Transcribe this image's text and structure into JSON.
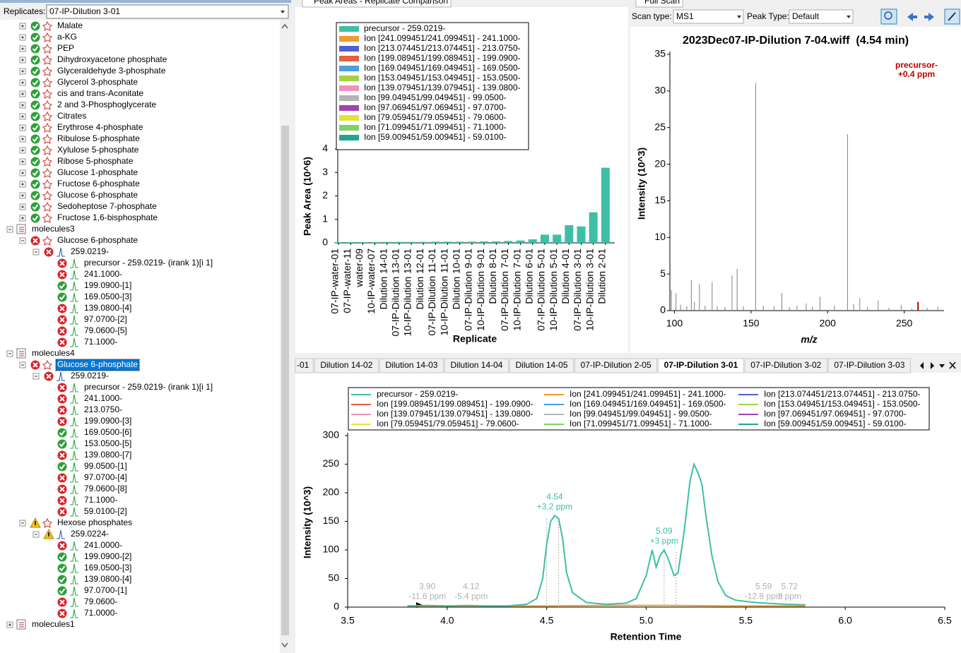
{
  "panels": {
    "replicates": {
      "label": "Replicates:",
      "value": "07-IP-Dilution 3-01"
    },
    "peak_areas_tab": "Peak Areas - Replicate Comparison",
    "full_scan_tab": "Full Scan",
    "scan_type_label": "Scan type:",
    "scan_type": "MS1",
    "peak_type_label": "Peak Type:",
    "peak_type": "Default",
    "chromatogram_tabs": [
      "-01",
      "Dilution 14-02",
      "Dilution 14-03",
      "Dilution 14-04",
      "Dilution 14-05",
      "07-IP-Dilution 2-05",
      "07-IP-Dilution 3-01",
      "07-IP-Dilution 3-02",
      "07-IP-Dilution 3-03"
    ],
    "active_tab": 6
  },
  "tree": [
    {
      "text": "Malate",
      "level": 1,
      "status": "ok",
      "expanded": false
    },
    {
      "text": "a-KG",
      "level": 1,
      "status": "ok",
      "expanded": false
    },
    {
      "text": "PEP",
      "level": 1,
      "status": "ok",
      "expanded": false
    },
    {
      "text": "Dihydroxyacetone phosphate",
      "level": 1,
      "status": "ok",
      "expanded": false
    },
    {
      "text": "Glyceraldehyde 3-phosphate",
      "level": 1,
      "status": "ok",
      "expanded": false
    },
    {
      "text": "Glycerol 3-phosphate",
      "level": 1,
      "status": "ok",
      "expanded": false
    },
    {
      "text": "cis and trans-Aconitate",
      "level": 1,
      "status": "ok",
      "expanded": false
    },
    {
      "text": "2 and 3-Phosphoglycerate",
      "level": 1,
      "status": "ok",
      "expanded": false
    },
    {
      "text": "Citrates",
      "level": 1,
      "status": "ok",
      "expanded": false
    },
    {
      "text": "Erythrose 4-phosphate",
      "level": 1,
      "status": "ok",
      "expanded": false
    },
    {
      "text": "Ribulose 5-phosphate",
      "level": 1,
      "status": "ok",
      "expanded": false
    },
    {
      "text": "Xylulose 5-phosphate",
      "level": 1,
      "status": "ok",
      "expanded": false
    },
    {
      "text": "Ribose 5-phosphate",
      "level": 1,
      "status": "ok",
      "expanded": false
    },
    {
      "text": "Glucose 1-phosphate",
      "level": 1,
      "status": "ok",
      "expanded": false
    },
    {
      "text": "Fructose 6-phosphate",
      "level": 1,
      "status": "ok",
      "expanded": false
    },
    {
      "text": "Glucose 6-phosphate",
      "level": 1,
      "status": "ok",
      "expanded": false
    },
    {
      "text": "Sedoheptose 7-phosphate",
      "level": 1,
      "status": "ok",
      "expanded": false
    },
    {
      "text": "Fructose 1,6-bisphosphate",
      "level": 1,
      "status": "ok",
      "expanded": false
    },
    {
      "text": "molecules3",
      "level": 0,
      "expanded": true
    },
    {
      "text": "Glucose 6-phosphate",
      "level": 1,
      "status": "error",
      "expanded": true
    },
    {
      "text": "259.0219-",
      "level": 2,
      "status": "error",
      "expanded": true
    },
    {
      "text": "precursor - 259.0219- (irank 1)[i 1]",
      "level": 3,
      "status": "error"
    },
    {
      "text": "241.1000-",
      "level": 3,
      "status": "error"
    },
    {
      "text": "199.0900-[1]",
      "level": 3,
      "status": "ok"
    },
    {
      "text": "169.0500-[3]",
      "level": 3,
      "status": "ok"
    },
    {
      "text": "139.0800-[4]",
      "level": 3,
      "status": "error"
    },
    {
      "text": "97.0700-[2]",
      "level": 3,
      "status": "error"
    },
    {
      "text": "79.0600-[5]",
      "level": 3,
      "status": "error"
    },
    {
      "text": "71.1000-",
      "level": 3,
      "status": "error"
    },
    {
      "text": "molecules4",
      "level": 0,
      "expanded": true
    },
    {
      "text": "Glucose 6-phosphate",
      "level": 1,
      "status": "error",
      "expanded": true,
      "selected": true
    },
    {
      "text": "259.0219-",
      "level": 2,
      "status": "error",
      "expanded": true
    },
    {
      "text": "precursor - 259.0219- (irank 1)[i 1]",
      "level": 3,
      "status": "error"
    },
    {
      "text": "241.1000-",
      "level": 3,
      "status": "error"
    },
    {
      "text": "213.0750-",
      "level": 3,
      "status": "error"
    },
    {
      "text": "199.0900-[3]",
      "level": 3,
      "status": "error"
    },
    {
      "text": "169.0500-[6]",
      "level": 3,
      "status": "ok"
    },
    {
      "text": "153.0500-[5]",
      "level": 3,
      "status": "ok"
    },
    {
      "text": "139.0800-[7]",
      "level": 3,
      "status": "error"
    },
    {
      "text": "99.0500-[1]",
      "level": 3,
      "status": "ok"
    },
    {
      "text": "97.0700-[4]",
      "level": 3,
      "status": "error"
    },
    {
      "text": "79.0600-[8]",
      "level": 3,
      "status": "error"
    },
    {
      "text": "71.1000-",
      "level": 3,
      "status": "error"
    },
    {
      "text": "59.0100-[2]",
      "level": 3,
      "status": "error"
    },
    {
      "text": "Hexose phosphates",
      "level": 1,
      "status": "warn",
      "expanded": true
    },
    {
      "text": "259.0224-",
      "level": 2,
      "status": "warn",
      "expanded": true
    },
    {
      "text": "241.0000-",
      "level": 3,
      "status": "error"
    },
    {
      "text": "199.0900-[2]",
      "level": 3,
      "status": "ok"
    },
    {
      "text": "169.0500-[3]",
      "level": 3,
      "status": "ok"
    },
    {
      "text": "139.0800-[4]",
      "level": 3,
      "status": "ok"
    },
    {
      "text": "97.0700-[1]",
      "level": 3,
      "status": "ok"
    },
    {
      "text": "79.0600-",
      "level": 3,
      "status": "error"
    },
    {
      "text": "71.0000-",
      "level": 3,
      "status": "error"
    },
    {
      "text": "molecules1",
      "level": 0,
      "expanded": false
    }
  ],
  "chart_data": [
    {
      "type": "bar",
      "x_label": "Replicate",
      "y_label": "Peak Area (10^6)",
      "categories": [
        "07-IP-water-01",
        "07-IP-water-11",
        "water-09",
        "10-IP-water-07",
        "Dilution 14-01",
        "07-IP-Dilution 13-01",
        "10-IP-Dilution 13-01",
        "Dilution 12-01",
        "07-IP-Dilution 11-01",
        "10-IP-Dilution 11-01",
        "Dilution 10-01",
        "07-IP-Dilution 9-01",
        "10-IP-Dilution 9-01",
        "Dilution 8-01",
        "07-IP-Dilution 7-01",
        "10-IP-Dilution 7-01",
        "Dilution 6-01",
        "07-IP-Dilution 5-01",
        "10-IP-Dilution 5-01",
        "Dilution 4-01",
        "07-IP-Dilution 3-01",
        "10-IP-Dilution 3-01",
        "Dilution 2-01"
      ],
      "ylim": [
        0,
        4
      ],
      "yticks": [
        0,
        1,
        2,
        3,
        4
      ],
      "series": [
        {
          "name": "precursor - 259.0219-",
          "color": "#3dbfa5",
          "values": [
            0.03,
            0.03,
            0.03,
            0.03,
            0.04,
            0.04,
            0.04,
            0.04,
            0.05,
            0.05,
            0.05,
            0.05,
            0.06,
            0.06,
            0.08,
            0.1,
            0.15,
            0.35,
            0.35,
            0.75,
            0.7,
            1.3,
            3.2
          ]
        },
        {
          "name": "Ion [241.099451/241.099451] - 241.1000-",
          "color": "#f39a2c"
        },
        {
          "name": "Ion [213.074451/213.074451] - 213.0750-",
          "color": "#5060d0"
        },
        {
          "name": "Ion [199.089451/199.089451] - 199.0900-",
          "color": "#e8603c"
        },
        {
          "name": "Ion [169.049451/169.049451] - 169.0500-",
          "color": "#4a9fe0"
        },
        {
          "name": "Ion [153.049451/153.049451] - 153.0500-",
          "color": "#a6d043"
        },
        {
          "name": "Ion [139.079451/139.079451] - 139.0800-",
          "color": "#f191bb"
        },
        {
          "name": "Ion [99.049451/99.049451] - 99.0500-",
          "color": "#b4b4b4"
        },
        {
          "name": "Ion [97.069451/97.069451] - 97.0700-",
          "color": "#a242b4"
        },
        {
          "name": "Ion [79.059451/79.059451] - 79.0600-",
          "color": "#e2e23c"
        },
        {
          "name": "Ion [71.099451/71.099451] - 71.1000-",
          "color": "#80d062"
        },
        {
          "name": "Ion [59.009451/59.009451] - 59.0100-",
          "color": "#22a48f"
        }
      ]
    },
    {
      "type": "stem",
      "title": "2023Dec07-IP-Dilution 7-04.wiff  (4.54 min)",
      "x_label": "m/z",
      "y_label": "Intensity (10^3)",
      "color": "#808080",
      "xlim": [
        97,
        276
      ],
      "xticks": [
        100,
        150,
        200,
        250
      ],
      "ylim": [
        0,
        35
      ],
      "yticks": [
        0,
        5,
        10,
        15,
        20,
        25,
        30,
        35
      ],
      "x": [
        98,
        101,
        104,
        108,
        111,
        113,
        116.3,
        120,
        124.6,
        128,
        133,
        137.6,
        140.9,
        145,
        153,
        158,
        165,
        170.1,
        175,
        180,
        186,
        190,
        195,
        204.5,
        213,
        217,
        221,
        226,
        233,
        240,
        248,
        255,
        265,
        272
      ],
      "values": [
        2.8,
        2.4,
        0.8,
        0.6,
        4.2,
        1.2,
        3.6,
        0.7,
        3.9,
        0.6,
        0.5,
        4.8,
        5.7,
        0.6,
        31.1,
        0.7,
        0.6,
        2.4,
        0.5,
        0.7,
        1.0,
        0.5,
        1.9,
        0.7,
        24.1,
        0.9,
        1.7,
        0.5,
        1.4,
        0.4,
        0.8,
        0.3,
        0.4,
        0.5
      ],
      "annotations": [
        {
          "name": "precursor-",
          "ppm": "+0.4 ppm",
          "x": 259.0,
          "value": 1.2,
          "color": "#c00000"
        }
      ]
    },
    {
      "type": "line",
      "x_label": "Retention Time",
      "y_label": "Intensity (10^3)",
      "xlim": [
        3.5,
        6.5
      ],
      "xticks": [
        3.5,
        {
          "value": 4,
          "label": "4.0"
        },
        4.5,
        {
          "value": 5,
          "label": "5.0"
        },
        5.5,
        {
          "value": 6,
          "label": "6.0"
        },
        6.5
      ],
      "ylim": [
        0,
        300
      ],
      "yticks": [
        0,
        50,
        100,
        150,
        200,
        250,
        300
      ],
      "series": [
        {
          "name": "precursor - 259.0219-",
          "color": "#3dbfa5",
          "x": [
            3.8,
            3.9,
            4.0,
            4.1,
            4.2,
            4.3,
            4.4,
            4.45,
            4.48,
            4.5,
            4.52,
            4.54,
            4.56,
            4.58,
            4.6,
            4.63,
            4.7,
            4.8,
            4.9,
            4.95,
            5.0,
            5.03,
            5.05,
            5.07,
            5.09,
            5.11,
            5.14,
            5.16,
            5.19,
            5.22,
            5.24,
            5.26,
            5.28,
            5.3,
            5.33,
            5.36,
            5.4,
            5.45,
            5.5,
            5.55,
            5.6,
            5.7,
            5.8
          ],
          "values": [
            2,
            3,
            2,
            3,
            2,
            2,
            5,
            15,
            50,
            110,
            150,
            160,
            155,
            120,
            60,
            25,
            8,
            5,
            7,
            15,
            55,
            100,
            70,
            90,
            100,
            85,
            55,
            60,
            130,
            220,
            250,
            235,
            215,
            160,
            90,
            45,
            20,
            12,
            10,
            8,
            7,
            5,
            4
          ]
        },
        {
          "name": "Ion [241.099451/241.099451] - 241.1000-",
          "color": "#f39a2c",
          "x": [
            3.8,
            4.2,
            4.5,
            4.8,
            5.1,
            5.4,
            5.8
          ],
          "values": [
            2,
            2,
            2,
            3,
            3,
            2,
            2
          ]
        },
        {
          "name": "Ion [213.074451/213.074451] - 213.0750-",
          "color": "#5060d0"
        },
        {
          "name": "Ion [199.089451/199.089451] - 199.0900-",
          "color": "#e8603c"
        },
        {
          "name": "Ion [169.049451/169.049451] - 169.0500-",
          "color": "#4a9fe0"
        },
        {
          "name": "Ion [153.049451/153.049451] - 153.0500-",
          "color": "#a6d043"
        },
        {
          "name": "Ion [139.079451/139.079451] - 139.0800-",
          "color": "#f191bb"
        },
        {
          "name": "Ion [99.049451/99.049451] - 99.0500-",
          "color": "#b4b4b4"
        },
        {
          "name": "Ion [97.069451/97.069451] - 97.0700-",
          "color": "#a242b4"
        },
        {
          "name": "Ion [79.059451/79.059451] - 79.0600-",
          "color": "#e2e23c"
        },
        {
          "name": "Ion [71.099451/71.099451] - 71.1000-",
          "color": "#80d062"
        },
        {
          "name": "Ion [59.009451/59.009451] - 59.0100-",
          "color": "#22a48f"
        }
      ],
      "annotations": [
        {
          "x": 4.54,
          "label": "4.54",
          "ppm": "+3.2 ppm",
          "value": 160,
          "color": "#3dbfa5",
          "boundaries": [
            4.5,
            4.56
          ]
        },
        {
          "x": 5.09,
          "label": "5.09",
          "ppm": "+3 ppm",
          "value": 100,
          "color": "#3dbfa5",
          "boundaries": [
            5.09,
            5.15
          ]
        },
        {
          "x": 3.9,
          "label": "3.90",
          "ppm": "-11.6 ppm",
          "value": 3,
          "color": "#b0b0b0"
        },
        {
          "x": 4.12,
          "label": "4.12",
          "ppm": "-5.4 ppm",
          "value": 3,
          "color": "#b0b0b0"
        },
        {
          "x": 5.59,
          "label": "5.59",
          "ppm": "-12.8 ppm",
          "value": 3,
          "color": "#b0b0b0"
        },
        {
          "x": 5.72,
          "label": "5.72",
          "ppm": "2 ppm",
          "value": 3,
          "color": "#b0b0b0"
        }
      ]
    }
  ]
}
